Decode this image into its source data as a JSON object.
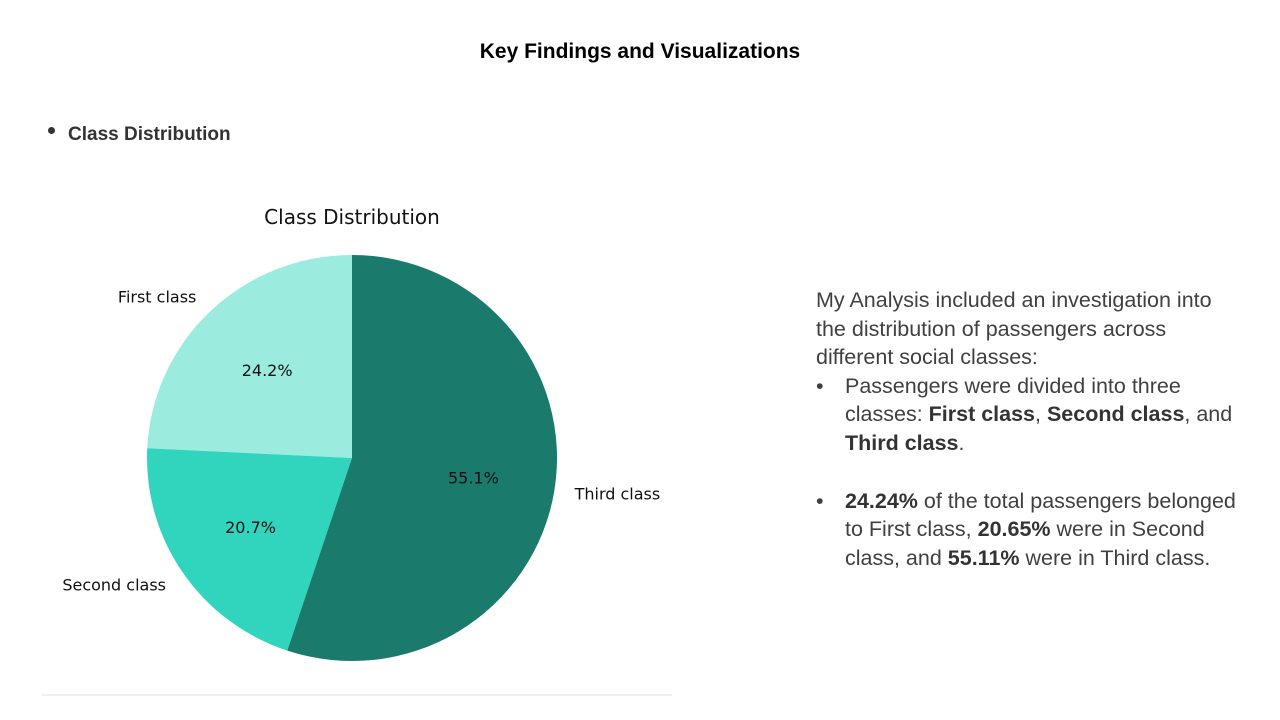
{
  "slide": {
    "title": "Key Findings and Visualizations",
    "section_bullet": "Class Distribution"
  },
  "chart_data": {
    "type": "pie",
    "title": "Class Distribution",
    "categories": [
      "First class",
      "Second class",
      "Third class"
    ],
    "values": [
      24.24,
      20.65,
      55.11
    ],
    "labels_pct": [
      "24.2%",
      "20.7%",
      "55.1%"
    ],
    "colors": [
      "#9BEBDF",
      "#31D5BE",
      "#1A7A6C"
    ],
    "start_angle_deg": 90,
    "direction": "counterclockwise"
  },
  "analysis": {
    "intro": "My Analysis included an investigation into the distribution of passengers across different social classes:",
    "b1_pre": "Passengers were divided into three classes: ",
    "b1_first": "First class",
    "b1_sep1": ", ",
    "b1_second": "Second class",
    "b1_sep2": ", and ",
    "b1_third": "Third class",
    "b1_end": ".",
    "b2_p1": "24.24%",
    "b2_t1": " of the total passengers belonged to First class, ",
    "b2_p2": "20.65%",
    "b2_t2": " were in Second class, and ",
    "b2_p3": "55.11%",
    "b2_t3": " were in Third class."
  }
}
